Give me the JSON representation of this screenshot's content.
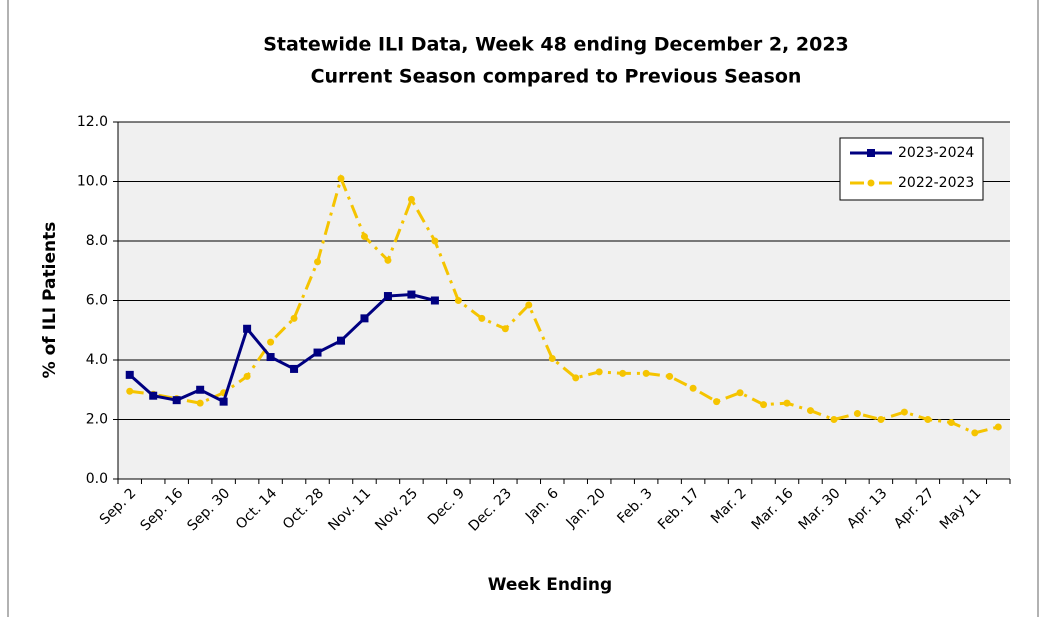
{
  "chart_data": {
    "type": "line",
    "title": "Statewide ILI Data, Week 48 ending December 2, 2023",
    "subtitle": "Current Season compared to Previous Season",
    "x_label": "Week Ending",
    "y_label": "% of ILI Patients",
    "categories": [
      "Sep. 2",
      null,
      "Sep. 16",
      null,
      "Sep. 30",
      null,
      "Oct. 14",
      null,
      "Oct. 28",
      null,
      "Nov. 11",
      null,
      "Nov. 25",
      null,
      "Dec. 9",
      null,
      "Dec. 23",
      null,
      "Jan. 6",
      null,
      "Jan. 20",
      null,
      "Feb. 3",
      null,
      "Feb. 17",
      null,
      "Mar. 2",
      null,
      "Mar. 16",
      null,
      "Mar. 30",
      null,
      "Apr. 13",
      null,
      "Apr. 27",
      null,
      "May 11",
      null
    ],
    "series": [
      {
        "name": "2023-2024",
        "color": "#000080",
        "marker": "square",
        "dash": "solid",
        "values": [
          3.5,
          2.8,
          2.65,
          3.0,
          2.6,
          5.05,
          4.1,
          3.7,
          4.25,
          4.65,
          5.4,
          6.15,
          6.2,
          6.0,
          null,
          null,
          null,
          null,
          null,
          null,
          null,
          null,
          null,
          null,
          null,
          null,
          null,
          null,
          null,
          null,
          null,
          null,
          null,
          null,
          null,
          null,
          null,
          null
        ]
      },
      {
        "name": "2022-2023",
        "color": "#F5C400",
        "marker": "circle",
        "dash": "dashdot",
        "values": [
          2.95,
          2.85,
          2.7,
          2.55,
          2.9,
          3.45,
          4.6,
          5.4,
          7.3,
          10.1,
          8.15,
          7.35,
          9.4,
          8.0,
          6.0,
          5.4,
          5.05,
          5.85,
          4.05,
          3.4,
          3.6,
          3.55,
          3.55,
          3.45,
          3.05,
          2.6,
          2.9,
          2.5,
          2.55,
          2.3,
          2.0,
          2.2,
          2.0,
          2.25,
          2.0,
          1.9,
          1.55,
          1.75
        ]
      }
    ],
    "ylim": [
      0,
      12
    ],
    "yticks": [
      {
        "value": 0,
        "label": "0.0"
      },
      {
        "value": 2,
        "label": "2.0"
      },
      {
        "value": 4,
        "label": "4.0"
      },
      {
        "value": 6,
        "label": "6.0"
      },
      {
        "value": 8,
        "label": "8.0"
      },
      {
        "value": 10,
        "label": "10.0"
      },
      {
        "value": 12,
        "label": "12.0"
      }
    ],
    "grid": true,
    "legend": "upper right"
  }
}
